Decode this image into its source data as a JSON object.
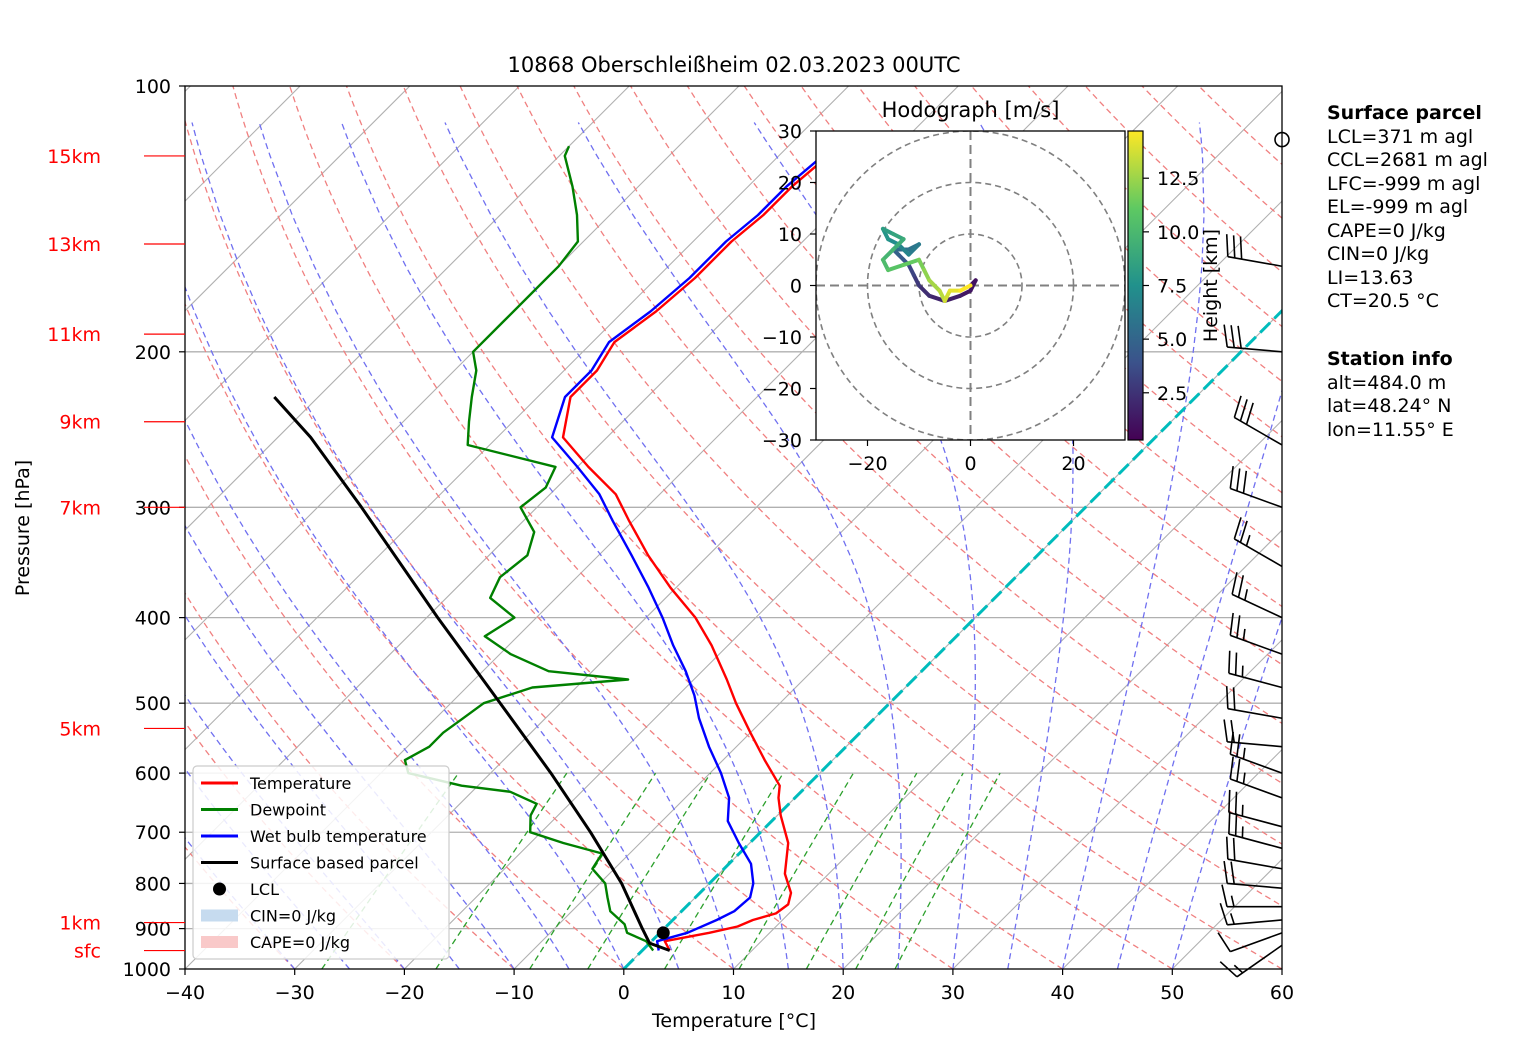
{
  "chart_data": {
    "type": "line",
    "title": "10868 Oberschleißheim 02.03.2023 00UTC",
    "xlabel": "Temperature [°C]",
    "ylabel": "Pressure [hPa]",
    "xlim": [
      -40,
      60
    ],
    "ylim": [
      1000,
      100
    ],
    "y_scale": "log",
    "grid": true,
    "x_ticks": [
      "−40",
      "−30",
      "−20",
      "−10",
      "0",
      "10",
      "20",
      "30",
      "40",
      "50",
      "60"
    ],
    "y_ticks": [
      {
        "p": 100,
        "label": "100"
      },
      {
        "p": 200,
        "label": "200"
      },
      {
        "p": 300,
        "label": "300"
      },
      {
        "p": 400,
        "label": "400"
      },
      {
        "p": 500,
        "label": "500"
      },
      {
        "p": 600,
        "label": "600"
      },
      {
        "p": 700,
        "label": "700"
      },
      {
        "p": 800,
        "label": "800"
      },
      {
        "p": 900,
        "label": "900"
      },
      {
        "p": 1000,
        "label": "1000"
      }
    ],
    "height_labels": [
      {
        "p": 120,
        "label": "15km"
      },
      {
        "p": 151,
        "label": "13km"
      },
      {
        "p": 191,
        "label": "11km"
      },
      {
        "p": 240,
        "label": "9km"
      },
      {
        "p": 300,
        "label": "7km"
      },
      {
        "p": 534,
        "label": "5km"
      },
      {
        "p": 886,
        "label": "1km"
      },
      {
        "p": 953,
        "label": "sfc"
      }
    ],
    "legend_position": "lower-left",
    "legend": [
      {
        "label": "Temperature",
        "color": "#ff0000",
        "kind": "line"
      },
      {
        "label": "Dewpoint",
        "color": "#008000",
        "kind": "line"
      },
      {
        "label": "Wet bulb temperature",
        "color": "#0000ff",
        "kind": "line"
      },
      {
        "label": "Surface based parcel",
        "color": "#000000",
        "kind": "line"
      },
      {
        "label": "LCL",
        "color": "#000000",
        "kind": "dot"
      },
      {
        "label": "CIN=0 J/kg",
        "color": "#c6dbef",
        "kind": "patch"
      },
      {
        "label": "CAPE=0 J/kg",
        "color": "#f9c9c9",
        "kind": "patch"
      }
    ],
    "series": [
      {
        "name": "Temperature",
        "color": "#ff0000",
        "points": [
          [
            953,
            2.5
          ],
          [
            930,
            1.2
          ],
          [
            910,
            4.5
          ],
          [
            895,
            6.5
          ],
          [
            880,
            7.3
          ],
          [
            865,
            8.8
          ],
          [
            845,
            9.1
          ],
          [
            820,
            8.3
          ],
          [
            780,
            6.0
          ],
          [
            720,
            3.5
          ],
          [
            670,
            0.3
          ],
          [
            640,
            -1.5
          ],
          [
            620,
            -2.5
          ],
          [
            580,
            -6.2
          ],
          [
            540,
            -10.0
          ],
          [
            500,
            -14.0
          ],
          [
            470,
            -17.0
          ],
          [
            430,
            -21.5
          ],
          [
            400,
            -25.5
          ],
          [
            370,
            -30.5
          ],
          [
            340,
            -35.5
          ],
          [
            310,
            -40.5
          ],
          [
            290,
            -44.0
          ],
          [
            270,
            -49.0
          ],
          [
            250,
            -54.0
          ],
          [
            225,
            -57.0
          ],
          [
            210,
            -57.0
          ],
          [
            195,
            -58.0
          ],
          [
            180,
            -57.0
          ],
          [
            165,
            -56.5
          ],
          [
            150,
            -56.5
          ],
          [
            140,
            -56.0
          ],
          [
            130,
            -56.0
          ],
          [
            120,
            -55.5
          ],
          [
            117,
            -55.3
          ]
        ]
      },
      {
        "name": "Dewpoint",
        "color": "#008000",
        "points": [
          [
            953,
            1.0
          ],
          [
            930,
            -0.5
          ],
          [
            910,
            -3.0
          ],
          [
            890,
            -4.0
          ],
          [
            860,
            -6.5
          ],
          [
            830,
            -8.0
          ],
          [
            800,
            -9.5
          ],
          [
            770,
            -12.0
          ],
          [
            740,
            -12.5
          ],
          [
            720,
            -17.0
          ],
          [
            700,
            -21.0
          ],
          [
            670,
            -22.5
          ],
          [
            650,
            -23.0
          ],
          [
            630,
            -26.5
          ],
          [
            620,
            -31.5
          ],
          [
            600,
            -37.5
          ],
          [
            580,
            -39.0
          ],
          [
            560,
            -38.0
          ],
          [
            540,
            -38.0
          ],
          [
            520,
            -37.5
          ],
          [
            500,
            -37.0
          ],
          [
            480,
            -34.0
          ],
          [
            470,
            -26.0
          ],
          [
            460,
            -34.0
          ],
          [
            440,
            -39.0
          ],
          [
            420,
            -43.0
          ],
          [
            400,
            -42.0
          ],
          [
            380,
            -46.0
          ],
          [
            360,
            -47.0
          ],
          [
            340,
            -46.5
          ],
          [
            320,
            -48.0
          ],
          [
            300,
            -51.5
          ],
          [
            285,
            -51.0
          ],
          [
            270,
            -52.0
          ],
          [
            255,
            -62.0
          ],
          [
            240,
            -64.0
          ],
          [
            225,
            -66.0
          ],
          [
            210,
            -68.0
          ],
          [
            200,
            -70.0
          ],
          [
            185,
            -70.0
          ],
          [
            170,
            -70.0
          ],
          [
            160,
            -70.0
          ],
          [
            150,
            -70.5
          ],
          [
            140,
            -73.0
          ],
          [
            130,
            -76.0
          ],
          [
            120,
            -79.5
          ],
          [
            117,
            -80.0
          ]
        ]
      },
      {
        "name": "Wet bulb temperature",
        "color": "#0000ff",
        "points": [
          [
            953,
            1.5
          ],
          [
            930,
            0.5
          ],
          [
            910,
            2.5
          ],
          [
            880,
            4.0
          ],
          [
            860,
            4.8
          ],
          [
            830,
            5.0
          ],
          [
            800,
            4.0
          ],
          [
            760,
            2.0
          ],
          [
            720,
            -1.0
          ],
          [
            680,
            -4.0
          ],
          [
            640,
            -6.0
          ],
          [
            600,
            -9.0
          ],
          [
            560,
            -12.5
          ],
          [
            520,
            -16.0
          ],
          [
            490,
            -18.5
          ],
          [
            460,
            -21.5
          ],
          [
            430,
            -25.0
          ],
          [
            400,
            -28.5
          ],
          [
            370,
            -32.5
          ],
          [
            340,
            -37.0
          ],
          [
            310,
            -42.0
          ],
          [
            290,
            -45.5
          ],
          [
            270,
            -50.0
          ],
          [
            250,
            -55.0
          ],
          [
            225,
            -57.5
          ],
          [
            210,
            -57.5
          ],
          [
            195,
            -58.5
          ],
          [
            180,
            -57.5
          ],
          [
            165,
            -57.0
          ],
          [
            150,
            -57.0
          ],
          [
            140,
            -56.5
          ],
          [
            130,
            -56.5
          ],
          [
            120,
            -56.0
          ],
          [
            117,
            -55.8
          ]
        ]
      },
      {
        "name": "Surface based parcel",
        "color": "#000000",
        "points": [
          [
            953,
            2.5
          ],
          [
            935,
            0.0
          ],
          [
            900,
            -2.0
          ],
          [
            800,
            -8.0
          ],
          [
            700,
            -15.5
          ],
          [
            600,
            -24.5
          ],
          [
            500,
            -35.5
          ],
          [
            400,
            -49.0
          ],
          [
            300,
            -66.0
          ],
          [
            250,
            -77.0
          ],
          [
            225,
            -84.0
          ]
        ]
      }
    ],
    "lcl": {
      "p": 910,
      "t": 0.3
    },
    "hodograph": {
      "title": "Hodograph [m/s]",
      "xlim": [
        -30,
        30
      ],
      "ylim": [
        -30,
        30
      ],
      "ticks": [
        "−20",
        "0",
        "20"
      ],
      "yticks": [
        "30",
        "20",
        "10",
        "0",
        "−10",
        "−20",
        "−30"
      ],
      "colorbar_label": "Height [km]",
      "colorbar_ticks": [
        "2.5",
        "5.0",
        "7.5",
        "10.0",
        "12.5"
      ]
    },
    "surface_parcel": {
      "heading": "Surface parcel",
      "lines": [
        "LCL=371 m agl",
        "CCL=2681 m agl",
        "LFC=-999 m agl",
        "EL=-999 m agl",
        "CAPE=0 J/kg",
        "CIN=0 J/kg",
        "LI=13.63",
        "CT=20.5 °C"
      ]
    },
    "station_info": {
      "heading": "Station info",
      "lines": [
        "alt=484.0 m",
        "lat=48.24° N",
        "lon=11.55° E"
      ]
    },
    "wind_barbs": [
      {
        "p": 115,
        "speed": 0,
        "dir": 0
      },
      {
        "p": 160,
        "speed": 30,
        "dir": 280
      },
      {
        "p": 200,
        "speed": 30,
        "dir": 275
      },
      {
        "p": 255,
        "speed": 30,
        "dir": 300
      },
      {
        "p": 300,
        "speed": 30,
        "dir": 290
      },
      {
        "p": 350,
        "speed": 25,
        "dir": 300
      },
      {
        "p": 400,
        "speed": 25,
        "dir": 295
      },
      {
        "p": 440,
        "speed": 25,
        "dir": 290
      },
      {
        "p": 480,
        "speed": 25,
        "dir": 285
      },
      {
        "p": 520,
        "speed": 20,
        "dir": 280
      },
      {
        "p": 560,
        "speed": 20,
        "dir": 275
      },
      {
        "p": 600,
        "speed": 25,
        "dir": 290
      },
      {
        "p": 640,
        "speed": 25,
        "dir": 290
      },
      {
        "p": 690,
        "speed": 25,
        "dir": 285
      },
      {
        "p": 730,
        "speed": 25,
        "dir": 285
      },
      {
        "p": 770,
        "speed": 20,
        "dir": 280
      },
      {
        "p": 810,
        "speed": 20,
        "dir": 275
      },
      {
        "p": 850,
        "speed": 15,
        "dir": 270
      },
      {
        "p": 880,
        "speed": 15,
        "dir": 265
      },
      {
        "p": 910,
        "speed": 10,
        "dir": 250
      },
      {
        "p": 940,
        "speed": 15,
        "dir": 235
      }
    ]
  }
}
